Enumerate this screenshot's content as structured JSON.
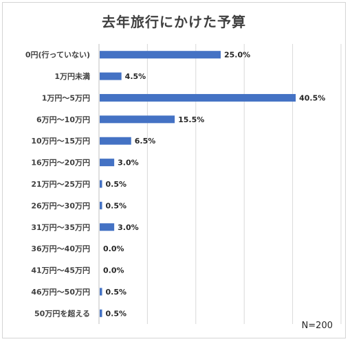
{
  "chart_data": {
    "type": "bar",
    "orientation": "horizontal",
    "title": "去年旅行にかけた予算",
    "categories": [
      "0円(行っていない)",
      "1万円未満",
      "1万円～5万円",
      "6万円～10万円",
      "10万円～15万円",
      "16万円～20万円",
      "21万円～25万円",
      "26万円～30万円",
      "31万円～35万円",
      "36万円～40万円",
      "41万円～45万円",
      "46万円～50万円",
      "50万円を超える"
    ],
    "values": [
      25.0,
      4.5,
      40.5,
      15.5,
      6.5,
      3.0,
      0.5,
      0.5,
      3.0,
      0.0,
      0.0,
      0.5,
      0.5
    ],
    "value_labels": [
      "25.0%",
      "4.5%",
      "40.5%",
      "15.5%",
      "6.5%",
      "3.0%",
      "0.5%",
      "0.5%",
      "3.0%",
      "0.0%",
      "0.0%",
      "0.5%",
      "0.5%"
    ],
    "xlim": [
      0,
      50
    ],
    "grid": true,
    "bar_color": "#4472c4",
    "gridline_color": "#d9d9d9",
    "note": "N=200"
  }
}
